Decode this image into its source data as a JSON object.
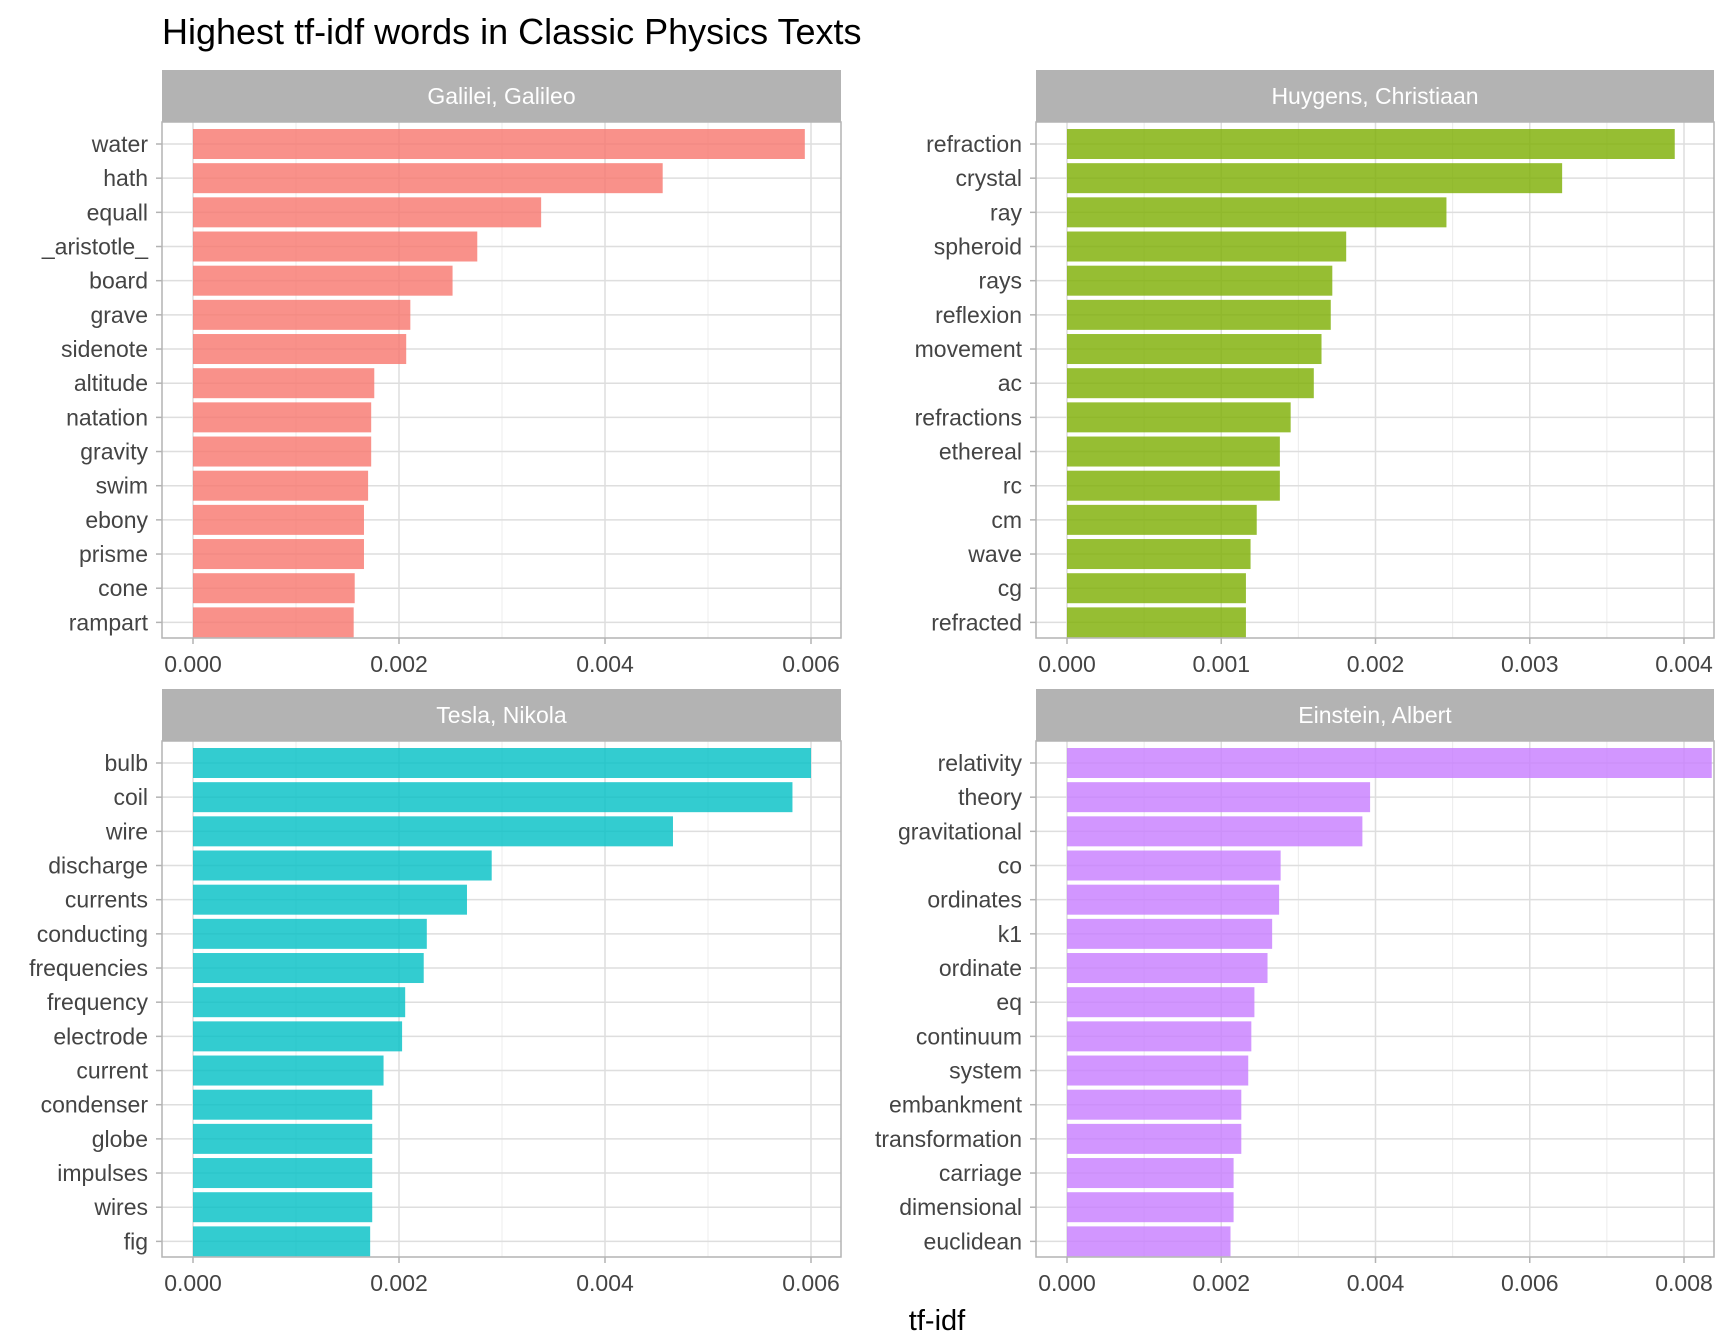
{
  "chart_data": {
    "type": "bar",
    "orientation": "horizontal",
    "title": "Highest tf-idf words in Classic Physics Texts",
    "xlabel": "tf-idf",
    "ylabel": "",
    "grid": true,
    "legend": "none",
    "facets": [
      {
        "name": "Galilei, Galileo",
        "color": "#F8766D",
        "xlim": [
          0,
          0.0062
        ],
        "ticks": [
          "0.000",
          "0.002",
          "0.004",
          "0.006"
        ],
        "tick_values": [
          0,
          0.002,
          0.004,
          0.006
        ],
        "categories": [
          "water",
          "hath",
          "equall",
          "_aristotle_",
          "board",
          "grave",
          "sidenote",
          "altitude",
          "natation",
          "gravity",
          "swim",
          "ebony",
          "prisme",
          "cone",
          "rampart"
        ],
        "values": [
          0.00594,
          0.00456,
          0.00338,
          0.00276,
          0.00252,
          0.00211,
          0.00207,
          0.00176,
          0.00173,
          0.00173,
          0.0017,
          0.00166,
          0.00166,
          0.00157,
          0.00156
        ]
      },
      {
        "name": "Huygens, Christiaan",
        "color": "#7CAE00",
        "xlim": [
          0,
          0.0041
        ],
        "ticks": [
          "0.000",
          "0.001",
          "0.002",
          "0.003",
          "0.004"
        ],
        "tick_values": [
          0,
          0.001,
          0.002,
          0.003,
          0.004
        ],
        "categories": [
          "refraction",
          "crystal",
          "ray",
          "spheroid",
          "rays",
          "reflexion",
          "movement",
          "ac",
          "refractions",
          "ethereal",
          "rc",
          "cm",
          "wave",
          "cg",
          "refracted"
        ],
        "values": [
          0.00394,
          0.00321,
          0.00246,
          0.00181,
          0.00172,
          0.00171,
          0.00165,
          0.0016,
          0.00145,
          0.00138,
          0.00138,
          0.00123,
          0.00119,
          0.00116,
          0.00116
        ]
      },
      {
        "name": "Tesla, Nikola",
        "color": "#00BFC4",
        "xlim": [
          0,
          0.0062
        ],
        "ticks": [
          "0.000",
          "0.002",
          "0.004",
          "0.006"
        ],
        "tick_values": [
          0,
          0.002,
          0.004,
          0.006
        ],
        "categories": [
          "bulb",
          "coil",
          "wire",
          "discharge",
          "currents",
          "conducting",
          "frequencies",
          "frequency",
          "electrode",
          "current",
          "condenser",
          "globe",
          "impulses",
          "wires",
          "fig"
        ],
        "values": [
          0.006,
          0.00582,
          0.00466,
          0.0029,
          0.00266,
          0.00227,
          0.00224,
          0.00206,
          0.00203,
          0.00185,
          0.00174,
          0.00174,
          0.00174,
          0.00174,
          0.00172
        ]
      },
      {
        "name": "Einstein, Albert",
        "color": "#C77CFF",
        "xlim": [
          0,
          0.0087
        ],
        "ticks": [
          "0.000",
          "0.002",
          "0.004",
          "0.006",
          "0.008"
        ],
        "tick_values": [
          0,
          0.002,
          0.004,
          0.006,
          0.008
        ],
        "categories": [
          "relativity",
          "theory",
          "gravitational",
          "co",
          "ordinates",
          "k1",
          "ordinate",
          "eq",
          "continuum",
          "system",
          "embankment",
          "transformation",
          "carriage",
          "dimensional",
          "euclidean"
        ],
        "values": [
          0.00836,
          0.00393,
          0.00383,
          0.00277,
          0.00275,
          0.00266,
          0.0026,
          0.00243,
          0.00239,
          0.00235,
          0.00226,
          0.00226,
          0.00216,
          0.00216,
          0.00212
        ]
      }
    ]
  }
}
